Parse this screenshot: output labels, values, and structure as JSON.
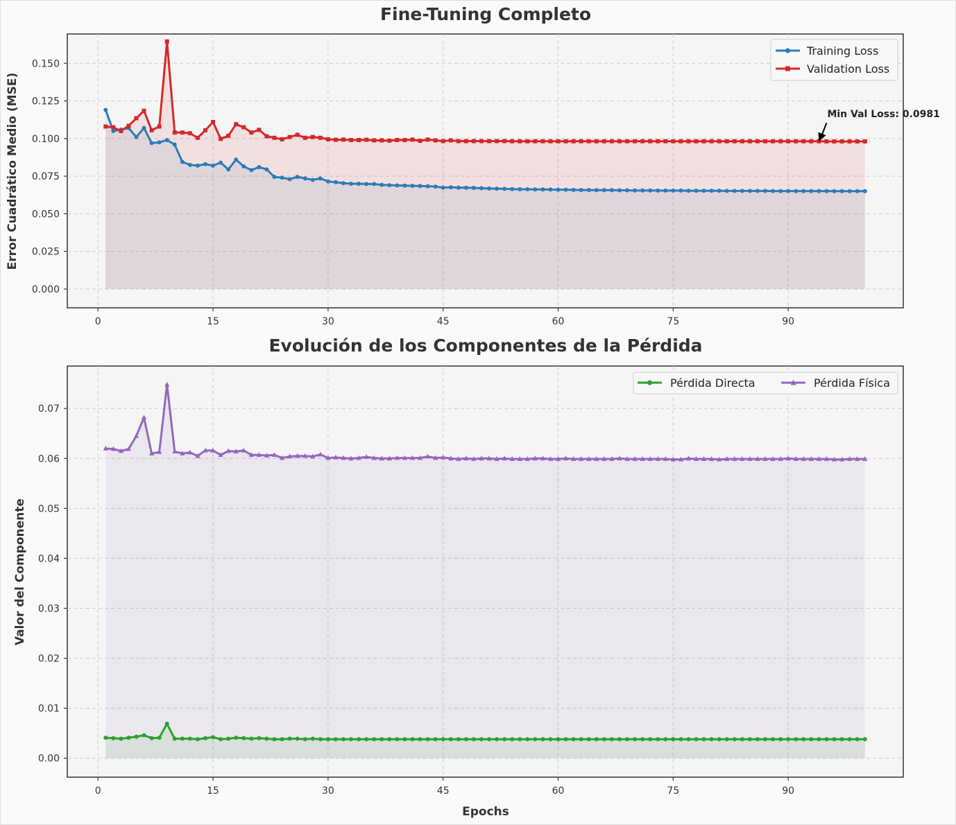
{
  "chart_data": [
    {
      "type": "line",
      "title": "Fine-Tuning Completo",
      "xlabel": "",
      "ylabel": "Error Cuadrático Medio (MSE)",
      "xlim": [
        -4,
        105
      ],
      "ylim": [
        -0.0125,
        0.1695
      ],
      "xticks": [
        0,
        15,
        30,
        45,
        60,
        75,
        90
      ],
      "yticks": [
        0.0,
        0.025,
        0.05,
        0.075,
        0.1,
        0.125,
        0.15
      ],
      "ytick_labels": [
        "0.000",
        "0.025",
        "0.050",
        "0.075",
        "0.100",
        "0.125",
        "0.150"
      ],
      "grid": true,
      "legend": "top-right",
      "x": {
        "start": 1,
        "end": 100
      },
      "series": [
        {
          "name": "Training Loss",
          "color": "#2c7bb6",
          "marker": "circle",
          "values": [
            0.119,
            0.105,
            0.106,
            0.107,
            0.101,
            0.107,
            0.097,
            0.0975,
            0.099,
            0.096,
            0.0845,
            0.0825,
            0.082,
            0.083,
            0.082,
            0.084,
            0.0795,
            0.086,
            0.0815,
            0.079,
            0.081,
            0.0795,
            0.0745,
            0.074,
            0.073,
            0.0745,
            0.0735,
            0.0725,
            0.0735,
            0.0715,
            0.071,
            0.0703,
            0.07,
            0.07,
            0.0698,
            0.0698,
            0.0692,
            0.069,
            0.0688,
            0.0687,
            0.0686,
            0.0685,
            0.0683,
            0.0681,
            0.0674,
            0.0676,
            0.0674,
            0.0673,
            0.0672,
            0.067,
            0.0668,
            0.0667,
            0.0666,
            0.0664,
            0.0663,
            0.0663,
            0.0662,
            0.0662,
            0.0661,
            0.066,
            0.066,
            0.0659,
            0.0658,
            0.0658,
            0.0657,
            0.0657,
            0.0657,
            0.0656,
            0.0656,
            0.0655,
            0.0655,
            0.0655,
            0.0654,
            0.0654,
            0.0654,
            0.0654,
            0.0653,
            0.0653,
            0.0653,
            0.0653,
            0.0653,
            0.0652,
            0.0652,
            0.0652,
            0.0652,
            0.0652,
            0.0652,
            0.0651,
            0.0651,
            0.0651,
            0.0651,
            0.0651,
            0.0651,
            0.0651,
            0.0651,
            0.065,
            0.065,
            0.065,
            0.065,
            0.065
          ]
        },
        {
          "name": "Validation Loss",
          "color": "#d62728",
          "marker": "square",
          "values": [
            0.108,
            0.1075,
            0.105,
            0.1085,
            0.1135,
            0.1185,
            0.1055,
            0.108,
            0.1645,
            0.104,
            0.104,
            0.1035,
            0.1005,
            0.1055,
            0.111,
            0.0998,
            0.1018,
            0.1095,
            0.1075,
            0.104,
            0.1058,
            0.1015,
            0.1005,
            0.0995,
            0.101,
            0.1025,
            0.1005,
            0.101,
            0.1005,
            0.0995,
            0.0992,
            0.0993,
            0.099,
            0.099,
            0.0992,
            0.0988,
            0.0988,
            0.0986,
            0.099,
            0.099,
            0.0993,
            0.0985,
            0.0993,
            0.0988,
            0.0983,
            0.0988,
            0.0983,
            0.0983,
            0.0983,
            0.0983,
            0.0983,
            0.0983,
            0.0983,
            0.0982,
            0.0982,
            0.0982,
            0.0982,
            0.0982,
            0.0982,
            0.0982,
            0.0982,
            0.0982,
            0.0982,
            0.0982,
            0.0982,
            0.0982,
            0.0982,
            0.0982,
            0.0982,
            0.0982,
            0.0982,
            0.0982,
            0.0982,
            0.0982,
            0.0982,
            0.0982,
            0.0982,
            0.0982,
            0.0982,
            0.0982,
            0.0982,
            0.0982,
            0.0982,
            0.0982,
            0.0982,
            0.0982,
            0.0982,
            0.0982,
            0.0982,
            0.0982,
            0.0982,
            0.0982,
            0.0982,
            0.0982,
            0.0981,
            0.0981,
            0.0981,
            0.0981,
            0.0981,
            0.0981
          ]
        }
      ],
      "annotation": {
        "text": "Min Val Loss: 0.0981",
        "point": {
          "x": 94,
          "y": 0.0981
        },
        "text_at": {
          "x": 95,
          "y": 0.1095
        }
      }
    },
    {
      "type": "line",
      "title": "Evolución de los Componentes de la Pérdida",
      "xlabel": "Epochs",
      "ylabel": "Valor del Componente",
      "xlim": [
        -4,
        105
      ],
      "ylim": [
        -0.0038,
        0.0785
      ],
      "xticks": [
        0,
        15,
        30,
        45,
        60,
        75,
        90
      ],
      "yticks": [
        0.0,
        0.01,
        0.02,
        0.03,
        0.04,
        0.05,
        0.06,
        0.07
      ],
      "ytick_labels": [
        "0.00",
        "0.01",
        "0.02",
        "0.03",
        "0.04",
        "0.05",
        "0.06",
        "0.07"
      ],
      "grid": true,
      "legend": "top-right",
      "x": {
        "start": 1,
        "end": 100
      },
      "series": [
        {
          "name": "Pérdida Directa",
          "color": "#2ca02c",
          "marker": "circle",
          "values": [
            0.0041,
            0.004,
            0.0039,
            0.0041,
            0.0043,
            0.0046,
            0.004,
            0.0041,
            0.0069,
            0.0039,
            0.0039,
            0.0039,
            0.0038,
            0.004,
            0.0042,
            0.0038,
            0.0039,
            0.0041,
            0.004,
            0.0039,
            0.004,
            0.0039,
            0.0038,
            0.0038,
            0.0039,
            0.0039,
            0.0038,
            0.0039,
            0.0038,
            0.0038,
            0.0038,
            0.0038,
            0.0038,
            0.0038,
            0.0038,
            0.0038,
            0.0038,
            0.0038,
            0.0038,
            0.0038,
            0.0038,
            0.0038,
            0.0038,
            0.0038,
            0.0038,
            0.0038,
            0.0038,
            0.0038,
            0.0038,
            0.0038,
            0.0038,
            0.0038,
            0.0038,
            0.0038,
            0.0038,
            0.0038,
            0.0038,
            0.0038,
            0.0038,
            0.0038,
            0.0038,
            0.0038,
            0.0038,
            0.0038,
            0.0038,
            0.0038,
            0.0038,
            0.0038,
            0.0038,
            0.0038,
            0.0038,
            0.0038,
            0.0038,
            0.0038,
            0.0038,
            0.0038,
            0.0038,
            0.0038,
            0.0038,
            0.0038,
            0.0038,
            0.0038,
            0.0038,
            0.0038,
            0.0038,
            0.0038,
            0.0038,
            0.0038,
            0.0038,
            0.0038,
            0.0038,
            0.0038,
            0.0038,
            0.0038,
            0.0038,
            0.0038,
            0.0038,
            0.0038,
            0.0038,
            0.0038
          ]
        },
        {
          "name": "Pérdida Física",
          "color": "#9467bd",
          "marker": "triangle",
          "values": [
            0.062,
            0.0619,
            0.0615,
            0.0619,
            0.0645,
            0.0682,
            0.061,
            0.0613,
            0.0748,
            0.0614,
            0.061,
            0.0612,
            0.0605,
            0.0616,
            0.0616,
            0.0607,
            0.0615,
            0.0614,
            0.0616,
            0.0607,
            0.0607,
            0.0606,
            0.0607,
            0.0601,
            0.0604,
            0.0605,
            0.0605,
            0.0604,
            0.0608,
            0.0601,
            0.0602,
            0.0601,
            0.06,
            0.0601,
            0.0603,
            0.0601,
            0.06,
            0.06,
            0.0601,
            0.0601,
            0.0601,
            0.0601,
            0.0604,
            0.0601,
            0.0602,
            0.06,
            0.0599,
            0.06,
            0.0599,
            0.06,
            0.06,
            0.0599,
            0.06,
            0.0599,
            0.0599,
            0.0599,
            0.06,
            0.06,
            0.0599,
            0.0599,
            0.06,
            0.0599,
            0.0599,
            0.0599,
            0.0599,
            0.0599,
            0.0599,
            0.06,
            0.0599,
            0.0599,
            0.0599,
            0.0599,
            0.0599,
            0.0599,
            0.0598,
            0.0598,
            0.06,
            0.0599,
            0.0599,
            0.0599,
            0.0598,
            0.0599,
            0.0599,
            0.0599,
            0.0599,
            0.0599,
            0.0599,
            0.0599,
            0.0599,
            0.06,
            0.0599,
            0.0599,
            0.0599,
            0.0599,
            0.0599,
            0.0598,
            0.0598,
            0.0599,
            0.0599,
            0.0599
          ]
        }
      ]
    }
  ]
}
